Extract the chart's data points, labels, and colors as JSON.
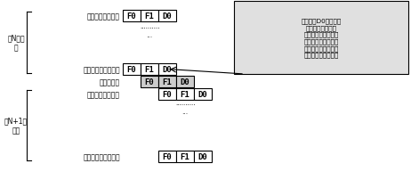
{
  "bg_color": "#ffffff",
  "label_nth_loop": "第N次循\n环",
  "label_n1_loop": "第N+1次\n循环",
  "label_first_instr": "循环体第一条指令",
  "label_last_instr": "循环体最后一条指令",
  "label_bubble": "插入的气泡",
  "label_first_instr2": "循环体第一条指令",
  "label_last_instr2": "循环体最后一条指令",
  "annotation_text": "在流水线D0译码出为\n循环体最后一条指\n令，并且循环没有结\n束，则发出程序存储\n器的读请求，请求读\n取循环体第一条指令",
  "stages": [
    "F0",
    "F1",
    "D0"
  ],
  "figsize": [
    4.62,
    2.03
  ],
  "dpi": 100
}
